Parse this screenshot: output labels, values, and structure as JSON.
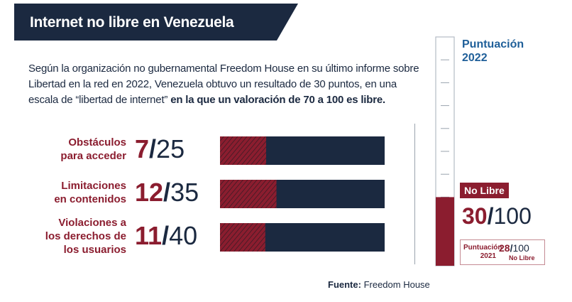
{
  "title": "Internet no libre en Venezuela",
  "intro": {
    "text": "Según la organización no gubernamental Freedom House en su último informe sobre Libertad en la red en 2022, Venezuela obtuvo un resultado de 30 puntos, en una escala de “libertad de internet” ",
    "highlight": "en la que un valoración de 70 a 100 es libre."
  },
  "source": {
    "label": "Fuente:",
    "value": "Freedom House"
  },
  "colors": {
    "navy": "#1b2940",
    "maroon": "#8b1d2f",
    "blue_title": "#1f5f99"
  },
  "chart_data": [
    {
      "type": "bar",
      "orientation": "horizontal",
      "categories": [
        "Obstáculos para acceder",
        "Limitaciones en contenidos",
        "Violaciones a los derechos de los usuarios"
      ],
      "label_lines": [
        [
          "Obstáculos",
          "para acceder"
        ],
        [
          "Limitaciones",
          "en contenidos"
        ],
        [
          "Violaciones a",
          "los derechos de",
          "los usuarios"
        ]
      ],
      "values": [
        7,
        12,
        11
      ],
      "max_values": [
        25,
        35,
        40
      ],
      "separator": "/",
      "max_labels": [
        "25",
        "35",
        "40"
      ]
    },
    {
      "type": "gauge",
      "title": "Puntuación 2022",
      "value": 30,
      "max": 100,
      "max_label": "100",
      "status": "No Libre",
      "previous": {
        "label": "Puntuación 2021",
        "value": 28,
        "max_label": "100",
        "status": "No Libre"
      }
    }
  ]
}
